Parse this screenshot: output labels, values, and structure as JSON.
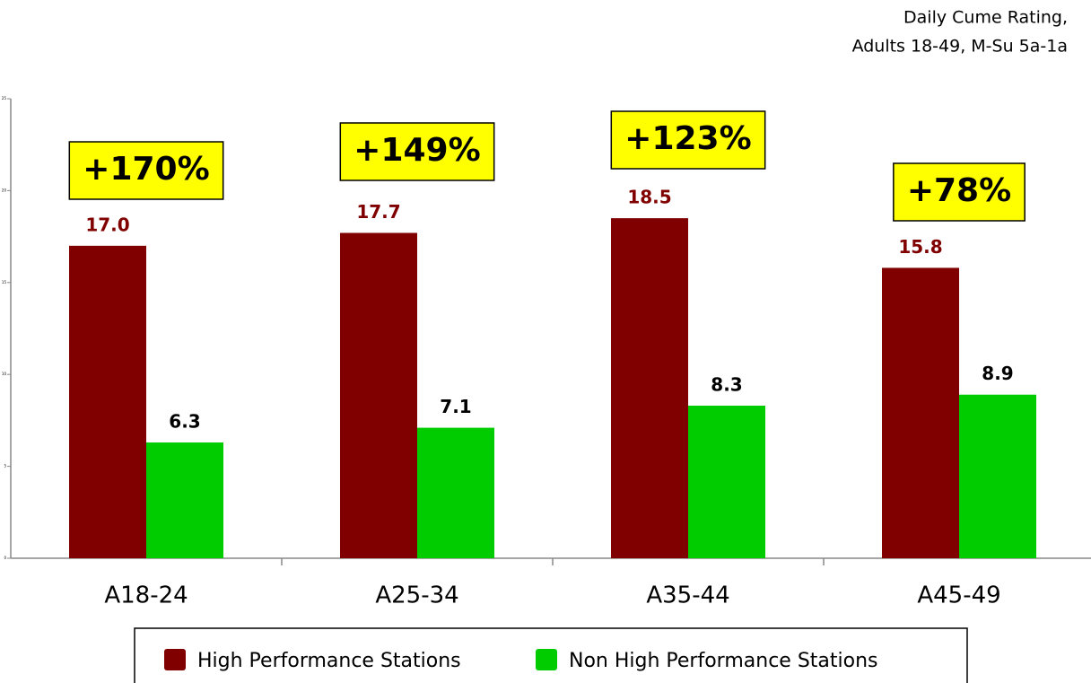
{
  "chart_data": {
    "type": "bar",
    "title": "Daily Cume Rating,",
    "subtitle": "Adults 18-49, M-Su 5a-1a",
    "categories": [
      "A18-24",
      "A25-34",
      "A35-44",
      "A45-49"
    ],
    "series": [
      {
        "name": "High Performance Stations",
        "color": "#800000",
        "values": [
          17.0,
          17.7,
          18.5,
          15.8
        ],
        "value_labels": [
          "17.0",
          "17.7",
          "18.5",
          "15.8"
        ],
        "label_color": "#800000"
      },
      {
        "name": "Non High Performance Stations",
        "color": "#00cc00",
        "values": [
          6.3,
          7.1,
          8.3,
          8.9
        ],
        "label_color": "#000000"
      }
    ],
    "annotations": [
      "+170%",
      "+149%",
      "+123%",
      "+78%"
    ],
    "ylim": [
      0,
      25
    ],
    "yticks": [
      0,
      5,
      10,
      15,
      20,
      25
    ],
    "grid": false
  }
}
